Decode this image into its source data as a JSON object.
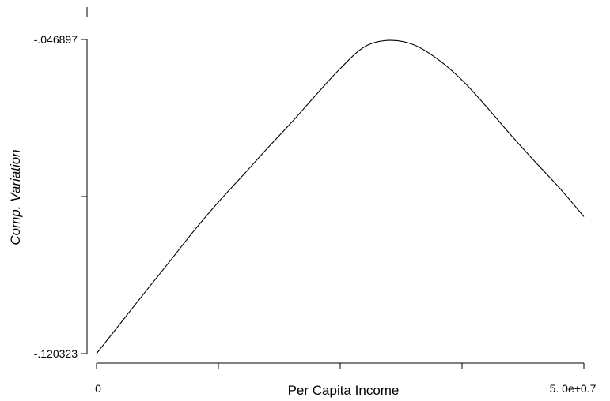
{
  "chart_data": {
    "type": "line",
    "title": "",
    "xlabel": "Per Capita Income",
    "ylabel": "Comp. Variation",
    "xlim": [
      0,
      50000000
    ],
    "ylim": [
      -0.120323,
      -0.046897
    ],
    "x_tick_labels": [
      "0",
      "5. 0e+0.7"
    ],
    "y_tick_labels": [
      "-.046897",
      "-.120323"
    ],
    "grid": false,
    "series": [
      {
        "x": [
          0,
          2500000,
          5000000,
          7500000,
          10000000,
          12500000,
          15000000,
          17500000,
          20000000,
          22500000,
          25000000,
          27500000,
          30000000,
          32500000,
          35000000,
          37500000,
          40000000,
          42500000,
          45000000,
          47500000,
          50000000
        ],
        "y": [
          -0.120323,
          -0.1131,
          -0.1059,
          -0.0988,
          -0.0916,
          -0.0849,
          -0.0787,
          -0.0724,
          -0.0663,
          -0.0599,
          -0.0537,
          -0.0486,
          -0.0471,
          -0.0481,
          -0.0515,
          -0.0564,
          -0.0626,
          -0.0692,
          -0.0755,
          -0.0816,
          -0.0883
        ]
      }
    ],
    "color": "#000000"
  }
}
